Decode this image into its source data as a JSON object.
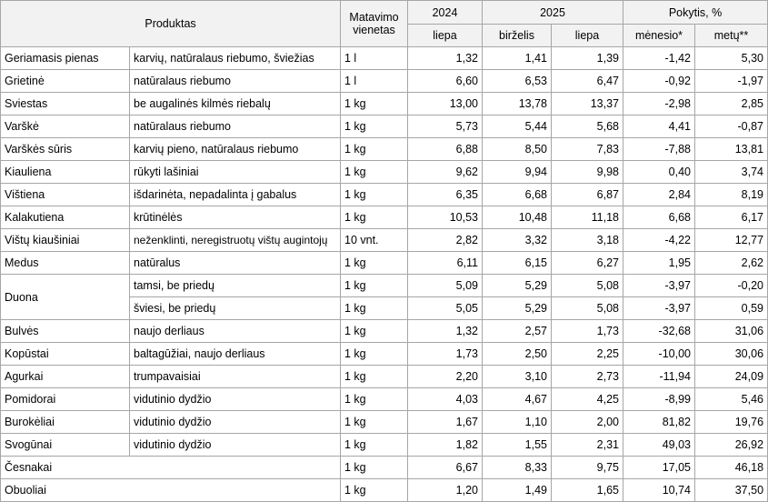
{
  "header": {
    "product": "Produktas",
    "unit_line1": "Matavimo",
    "unit_line2": "vienetas",
    "year_2024": "2024",
    "year_2025": "2025",
    "change": "Pokytis, %",
    "col_2024_jul": "liepa",
    "col_2025_jun": "birželis",
    "col_2025_jul": "liepa",
    "col_month": "mėnesio*",
    "col_year": "metų**"
  },
  "rows": [
    {
      "name": "Geriamasis pienas",
      "desc": "karvių, natūralaus riebumo, šviežias",
      "unit": "1 l",
      "v2024": "1,32",
      "jun": "1,41",
      "jul": "1,39",
      "m": "-1,42",
      "y": "5,30"
    },
    {
      "name": "Grietinė",
      "desc": "natūralaus riebumo",
      "unit": "1 l",
      "v2024": "6,60",
      "jun": "6,53",
      "jul": "6,47",
      "m": "-0,92",
      "y": "-1,97"
    },
    {
      "name": "Sviestas",
      "desc": "be augalinės kilmės riebalų",
      "unit": "1 kg",
      "v2024": "13,00",
      "jun": "13,78",
      "jul": "13,37",
      "m": "-2,98",
      "y": "2,85"
    },
    {
      "name": "Varškė",
      "desc": "natūralaus riebumo",
      "unit": "1 kg",
      "v2024": "5,73",
      "jun": "5,44",
      "jul": "5,68",
      "m": "4,41",
      "y": "-0,87"
    },
    {
      "name": "Varškės sūris",
      "desc": "karvių pieno, natūralaus riebumo",
      "unit": "1 kg",
      "v2024": "6,88",
      "jun": "8,50",
      "jul": "7,83",
      "m": "-7,88",
      "y": "13,81"
    },
    {
      "name": "Kiauliena",
      "desc": "rūkyti lašiniai",
      "unit": "1 kg",
      "v2024": "9,62",
      "jun": "9,94",
      "jul": "9,98",
      "m": "0,40",
      "y": "3,74"
    },
    {
      "name": "Vištiena",
      "desc": "išdarinėta, nepadalinta į gabalus",
      "unit": "1 kg",
      "v2024": "6,35",
      "jun": "6,68",
      "jul": "6,87",
      "m": "2,84",
      "y": "8,19"
    },
    {
      "name": "Kalakutiena",
      "desc": "krūtinėlės",
      "unit": "1 kg",
      "v2024": "10,53",
      "jun": "10,48",
      "jul": "11,18",
      "m": "6,68",
      "y": "6,17"
    },
    {
      "name": "Vištų kiaušiniai",
      "desc": "neženklinti, neregistruotų vištų augintojų",
      "unit": "10 vnt.",
      "v2024": "2,82",
      "jun": "3,32",
      "jul": "3,18",
      "m": "-4,22",
      "y": "12,77"
    },
    {
      "name": "Medus",
      "desc": "natūralus",
      "unit": "1 kg",
      "v2024": "6,11",
      "jun": "6,15",
      "jul": "6,27",
      "m": "1,95",
      "y": "2,62"
    }
  ],
  "duona": {
    "name": "Duona",
    "rows": [
      {
        "desc": "tamsi, be priedų",
        "unit": "1 kg",
        "v2024": "5,09",
        "jun": "5,29",
        "jul": "5,08",
        "m": "-3,97",
        "y": "-0,20"
      },
      {
        "desc": "šviesi, be priedų",
        "unit": "1 kg",
        "v2024": "5,05",
        "jun": "5,29",
        "jul": "5,08",
        "m": "-3,97",
        "y": "0,59"
      }
    ]
  },
  "rows2": [
    {
      "name": "Bulvės",
      "desc": "naujo derliaus",
      "unit": "1 kg",
      "v2024": "1,32",
      "jun": "2,57",
      "jul": "1,73",
      "m": "-32,68",
      "y": "31,06"
    },
    {
      "name": "Kopūstai",
      "desc": "baltagūžiai, naujo derliaus",
      "unit": "1 kg",
      "v2024": "1,73",
      "jun": "2,50",
      "jul": "2,25",
      "m": "-10,00",
      "y": "30,06"
    },
    {
      "name": "Agurkai",
      "desc": "trumpavaisiai",
      "unit": "1 kg",
      "v2024": "2,20",
      "jun": "3,10",
      "jul": "2,73",
      "m": "-11,94",
      "y": "24,09"
    },
    {
      "name": "Pomidorai",
      "desc": "vidutinio dydžio",
      "unit": "1 kg",
      "v2024": "4,03",
      "jun": "4,67",
      "jul": "4,25",
      "m": "-8,99",
      "y": "5,46"
    },
    {
      "name": "Burokėliai",
      "desc": "vidutinio dydžio",
      "unit": "1 kg",
      "v2024": "1,67",
      "jun": "1,10",
      "jul": "2,00",
      "m": "81,82",
      "y": "19,76"
    },
    {
      "name": "Svogūnai",
      "desc": "vidutinio dydžio",
      "unit": "1 kg",
      "v2024": "1,82",
      "jun": "1,55",
      "jul": "2,31",
      "m": "49,03",
      "y": "26,92"
    }
  ],
  "rows3": [
    {
      "name": "Česnakai",
      "unit": "1 kg",
      "v2024": "6,67",
      "jun": "8,33",
      "jul": "9,75",
      "m": "17,05",
      "y": "46,18"
    },
    {
      "name": "Obuoliai",
      "unit": "1 kg",
      "v2024": "1,20",
      "jun": "1,49",
      "jul": "1,65",
      "m": "10,74",
      "y": "37,50"
    }
  ]
}
